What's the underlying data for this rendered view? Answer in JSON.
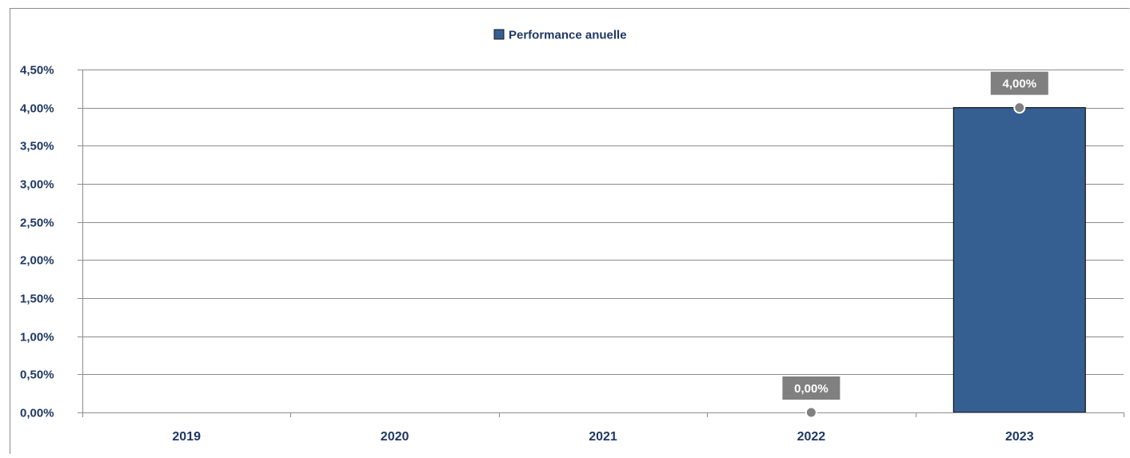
{
  "chart_data": {
    "type": "bar",
    "categories": [
      "2019",
      "2020",
      "2021",
      "2022",
      "2023"
    ],
    "series": [
      {
        "name": "Performance anuelle",
        "values": [
          null,
          null,
          null,
          0.0,
          4.0
        ]
      }
    ],
    "data_labels": [
      "",
      "",
      "",
      "0,00%",
      "4,00%"
    ],
    "ylim": [
      0,
      4.5
    ],
    "yticks": [
      0,
      0.5,
      1.0,
      1.5,
      2.0,
      2.5,
      3.0,
      3.5,
      4.0,
      4.5
    ],
    "ytick_labels": [
      "0,00%",
      "0,50%",
      "1,00%",
      "1,50%",
      "2,00%",
      "2,50%",
      "3,00%",
      "3,50%",
      "4,00%",
      "4,50%"
    ],
    "grid": true,
    "legend_position": "top-center",
    "colors": {
      "bar": "#355F91",
      "text": "#1F3864",
      "gridline": "#8C8C8C",
      "label_box": "#808080",
      "label_text": "#FFFFFF",
      "marker": "#808080"
    }
  }
}
